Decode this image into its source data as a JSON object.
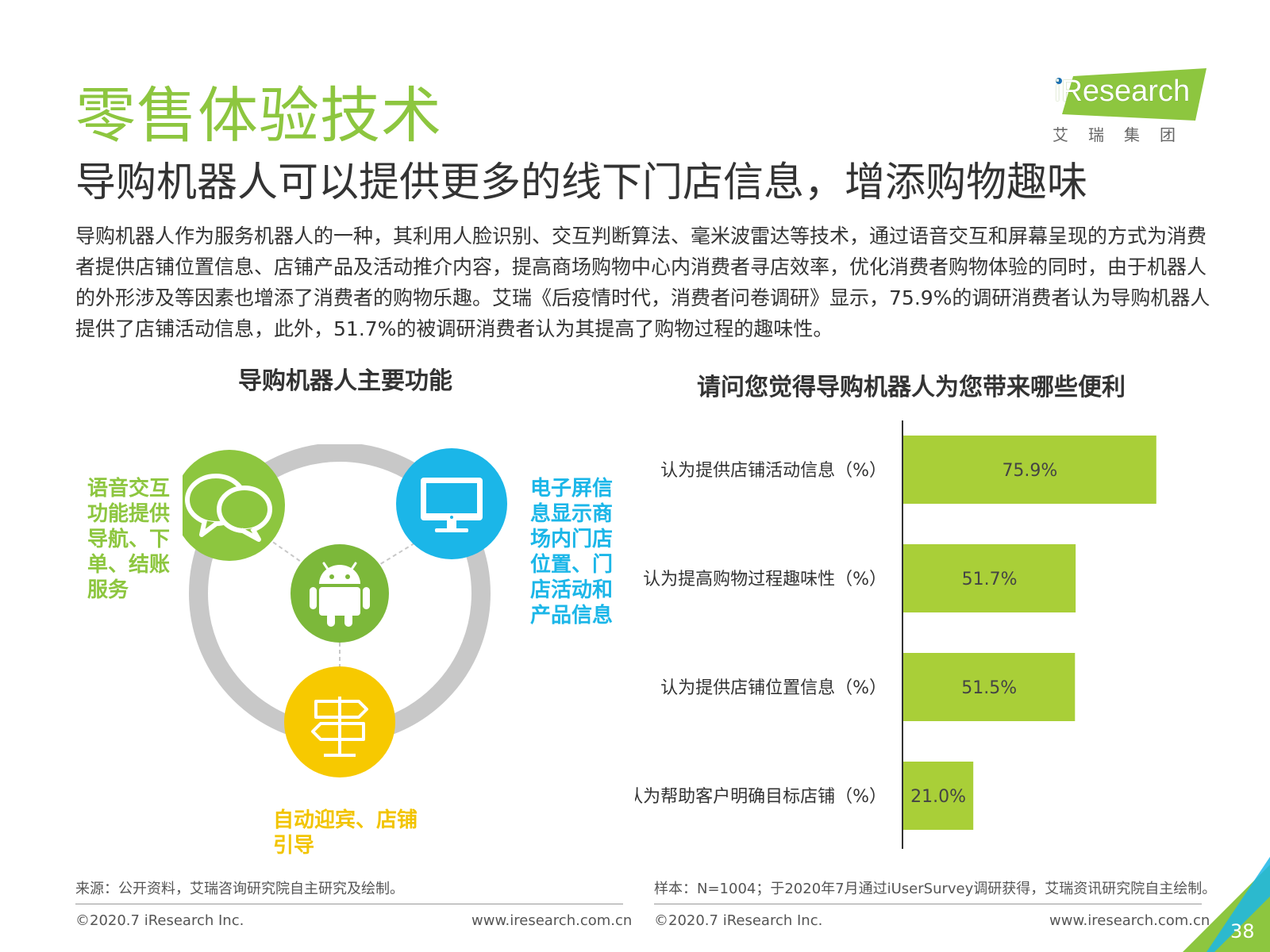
{
  "header": {
    "title": "零售体验技术",
    "subtitle": "导购机器人可以提供更多的线下门店信息，增添购物趣味",
    "body": "导购机器人作为服务机器人的一种，其利用人脸识别、交互判断算法、毫米波雷达等技术，通过语音交互和屏幕呈现的方式为消费者提供店铺位置信息、店铺产品及活动推介内容，提高商场购物中心内消费者寻店效率，优化消费者购物体验的同时，由于机器人的外形涉及等因素也增添了消费者的购物乐趣。艾瑞《后疫情时代，消费者问卷调研》显示，75.9%的调研消费者认为导购机器人提供了店铺活动信息，此外，51.7%的被调研消费者认为其提高了购物过程的趣味性。"
  },
  "logo": {
    "word": "iResearch",
    "cn": "艾瑞集团"
  },
  "left_panel": {
    "title": "导购机器人主要功能",
    "features": {
      "voice": "语音交互功能提供导航、下单、结账服务",
      "screen": "电子屏信息显示商场内门店位置、门店活动和产品信息",
      "guide": "自动迎宾、店铺引导"
    },
    "icons": [
      "chat-bubbles-icon",
      "monitor-icon",
      "android-robot-icon",
      "signpost-icon"
    ],
    "colors": {
      "ring": "#c8c8c8",
      "voice": "#8dc63f",
      "screen": "#1bb6e8",
      "robot": "#7cb83a",
      "guide": "#f7c900"
    }
  },
  "right_panel": {
    "title": "请问您觉得导购机器人为您带来哪些便利"
  },
  "chart_data": {
    "type": "bar",
    "orientation": "horizontal",
    "title": "请问您觉得导购机器人为您带来哪些便利",
    "categories": [
      "认为提供店铺活动信息（%）",
      "认为提高购物过程趣味性（%）",
      "认为提供店铺位置信息（%）",
      "认为帮助客户明确目标店铺（%）"
    ],
    "values": [
      75.9,
      51.7,
      51.5,
      21.0
    ],
    "value_labels": [
      "75.9%",
      "51.7%",
      "51.5%",
      "21.0%"
    ],
    "xlim": [
      0,
      100
    ],
    "grid": false,
    "bar_color": "#a9cf38"
  },
  "footer": {
    "left_source": "来源：公开资料，艾瑞咨询研究院自主研究及绘制。",
    "right_source": "样本：N=1004；于2020年7月通过iUserSurvey调研获得，艾瑞资讯研究院自主绘制。",
    "copyright": "©2020.7 iResearch Inc.",
    "site": "www.iresearch.com.cn",
    "page_number": "38"
  }
}
